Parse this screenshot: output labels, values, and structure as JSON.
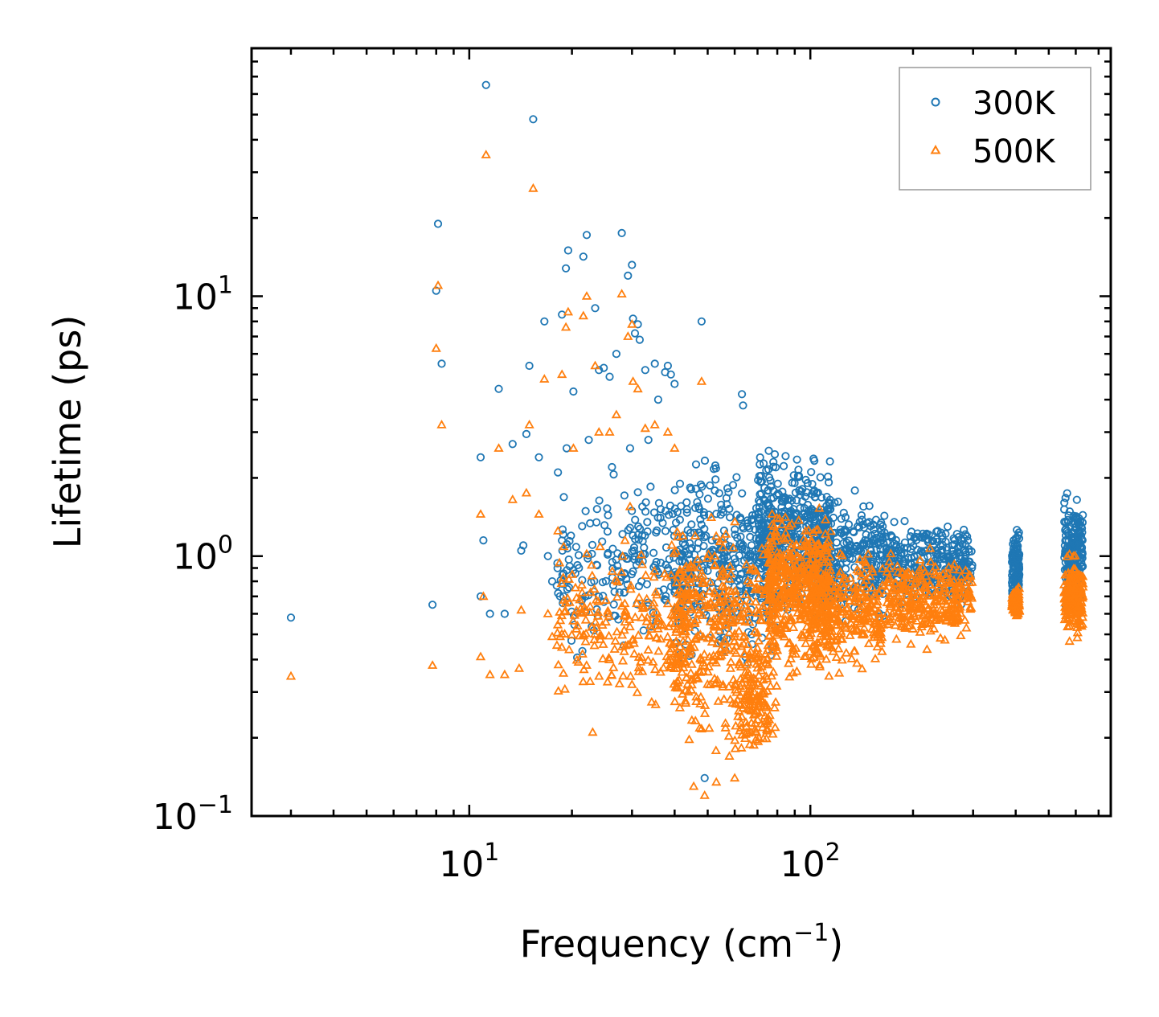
{
  "chart_data": {
    "type": "scatter",
    "title": "",
    "xlabel": "Frequency (cm",
    "xlabel_sup": "−1",
    "xlabel_suffix": ")",
    "ylabel": "Lifetime (ps)",
    "xscale": "log",
    "yscale": "log",
    "xlim": [
      2.3,
      760
    ],
    "ylim": [
      0.1,
      90
    ],
    "x_ticks": [
      {
        "value": 10,
        "base": "10",
        "exp": "1"
      },
      {
        "value": 100,
        "base": "10",
        "exp": "2"
      }
    ],
    "y_ticks": [
      {
        "value": 0.1,
        "base": "10",
        "exp": "−1"
      },
      {
        "value": 1,
        "base": "10",
        "exp": "0"
      },
      {
        "value": 10,
        "base": "10",
        "exp": "1"
      }
    ],
    "legend": {
      "position": "top-right",
      "entries": [
        "300K",
        "500K"
      ]
    },
    "colors": {
      "300K": "#1f77b4",
      "500K": "#ff7f0e"
    },
    "series": [
      {
        "name": "300K",
        "marker": "circle",
        "color": "#1f77b4",
        "points": [
          [
            3.0,
            0.58
          ],
          [
            7.8,
            0.65
          ],
          [
            8.0,
            10.5
          ],
          [
            8.1,
            19.0
          ],
          [
            8.3,
            5.5
          ],
          [
            10.8,
            2.4
          ],
          [
            10.8,
            0.7
          ],
          [
            11.0,
            1.15
          ],
          [
            11.2,
            65
          ],
          [
            11.5,
            0.6
          ],
          [
            12.2,
            4.4
          ],
          [
            12.7,
            0.6
          ],
          [
            13.4,
            2.7
          ],
          [
            14.2,
            1.05
          ],
          [
            14.4,
            1.1
          ],
          [
            14.7,
            2.95
          ],
          [
            15.0,
            5.4
          ],
          [
            15.4,
            48
          ],
          [
            16.0,
            2.4
          ],
          [
            16.6,
            8.0
          ],
          [
            17.0,
            1.0
          ],
          [
            17.5,
            0.8
          ],
          [
            18.2,
            2.1
          ],
          [
            18.7,
            8.5
          ],
          [
            18.8,
            0.66
          ],
          [
            19.2,
            12.8
          ],
          [
            19.3,
            2.6
          ],
          [
            19.5,
            15.0
          ],
          [
            20.2,
            4.3
          ],
          [
            21.6,
            14.2
          ],
          [
            22.1,
            17.2
          ],
          [
            22.4,
            2.8
          ],
          [
            23.4,
            9.0
          ],
          [
            24.0,
            5.2
          ],
          [
            24.8,
            5.3
          ],
          [
            25.8,
            4.9
          ],
          [
            26.2,
            2.2
          ],
          [
            27.0,
            6.0
          ],
          [
            28.0,
            17.5
          ],
          [
            29.2,
            12.0
          ],
          [
            29.6,
            2.6
          ],
          [
            30.0,
            13.2
          ],
          [
            30.2,
            8.2
          ],
          [
            30.6,
            7.2
          ],
          [
            31.2,
            7.8
          ],
          [
            31.6,
            6.8
          ],
          [
            32.8,
            5.2
          ],
          [
            33.5,
            2.8
          ],
          [
            35.0,
            5.5
          ],
          [
            35.8,
            4.0
          ],
          [
            37.5,
            5.1
          ],
          [
            38.2,
            5.4
          ],
          [
            39.0,
            5.0
          ],
          [
            40.0,
            4.6
          ],
          [
            48.0,
            8.0
          ],
          [
            63.0,
            4.2
          ],
          [
            63.5,
            3.8
          ],
          [
            49.0,
            0.14
          ],
          [
            34.0,
            1.85
          ],
          [
            36.0,
            1.6
          ]
        ],
        "dense_regions": [
          {
            "x": [
              18,
              45
            ],
            "y": [
              0.36,
              2.3
            ],
            "n": 220
          },
          {
            "x": [
              40,
              80
            ],
            "y": [
              0.32,
              2.8
            ],
            "n": 380
          },
          {
            "x": [
              70,
              115
            ],
            "y": [
              0.55,
              2.9
            ],
            "n": 430
          },
          {
            "x": [
              100,
              165
            ],
            "y": [
              0.5,
              1.9
            ],
            "n": 300
          },
          {
            "x": [
              165,
              300
            ],
            "y": [
              0.6,
              1.5
            ],
            "n": 320
          },
          {
            "x": [
              390,
              410
            ],
            "y": [
              0.62,
              1.35
            ],
            "n": 110
          },
          {
            "x": [
              555,
              630
            ],
            "y": [
              0.55,
              2.0
            ],
            "n": 180
          }
        ]
      },
      {
        "name": "500K",
        "marker": "triangle",
        "color": "#ff7f0e",
        "points": [
          [
            3.0,
            0.345
          ],
          [
            7.8,
            0.38
          ],
          [
            8.0,
            6.3
          ],
          [
            8.1,
            11.0
          ],
          [
            8.3,
            3.2
          ],
          [
            10.8,
            1.45
          ],
          [
            10.8,
            0.41
          ],
          [
            11.0,
            0.7
          ],
          [
            11.2,
            35
          ],
          [
            11.5,
            0.35
          ],
          [
            12.2,
            2.6
          ],
          [
            12.7,
            0.35
          ],
          [
            13.4,
            1.65
          ],
          [
            14.0,
            0.37
          ],
          [
            14.2,
            0.62
          ],
          [
            14.7,
            1.75
          ],
          [
            15.0,
            3.2
          ],
          [
            15.4,
            26
          ],
          [
            16.0,
            1.45
          ],
          [
            16.6,
            4.8
          ],
          [
            17.0,
            0.6
          ],
          [
            17.5,
            0.49
          ],
          [
            18.2,
            1.25
          ],
          [
            18.7,
            5.0
          ],
          [
            19.2,
            7.6
          ],
          [
            19.5,
            8.7
          ],
          [
            20.2,
            2.6
          ],
          [
            21.6,
            8.4
          ],
          [
            22.1,
            10.0
          ],
          [
            23.4,
            5.4
          ],
          [
            24.0,
            3.0
          ],
          [
            25.8,
            3.0
          ],
          [
            27.0,
            3.5
          ],
          [
            28.0,
            10.2
          ],
          [
            29.2,
            7.0
          ],
          [
            29.6,
            1.55
          ],
          [
            30.0,
            7.8
          ],
          [
            30.2,
            4.7
          ],
          [
            31.2,
            4.4
          ],
          [
            32.8,
            3.1
          ],
          [
            35.0,
            3.2
          ],
          [
            38.2,
            3.0
          ],
          [
            40.0,
            2.6
          ],
          [
            48.0,
            4.7
          ],
          [
            49.0,
            0.12
          ],
          [
            45.5,
            0.13
          ],
          [
            53.0,
            0.135
          ],
          [
            60.0,
            0.14
          ],
          [
            23.0,
            0.21
          ]
        ],
        "dense_regions": [
          {
            "x": [
              18,
              45
            ],
            "y": [
              0.21,
              1.5
            ],
            "n": 240
          },
          {
            "x": [
              40,
              80
            ],
            "y": [
              0.15,
              1.6
            ],
            "n": 420
          },
          {
            "x": [
              60,
              75
            ],
            "y": [
              0.15,
              0.45
            ],
            "n": 90
          },
          {
            "x": [
              75,
              115
            ],
            "y": [
              0.3,
              1.9
            ],
            "n": 420
          },
          {
            "x": [
              100,
              165
            ],
            "y": [
              0.32,
              1.2
            ],
            "n": 300
          },
          {
            "x": [
              165,
              300
            ],
            "y": [
              0.42,
              1.1
            ],
            "n": 300
          },
          {
            "x": [
              390,
              410
            ],
            "y": [
              0.56,
              0.78
            ],
            "n": 100
          },
          {
            "x": [
              555,
              630
            ],
            "y": [
              0.45,
              1.1
            ],
            "n": 180
          }
        ]
      }
    ]
  }
}
